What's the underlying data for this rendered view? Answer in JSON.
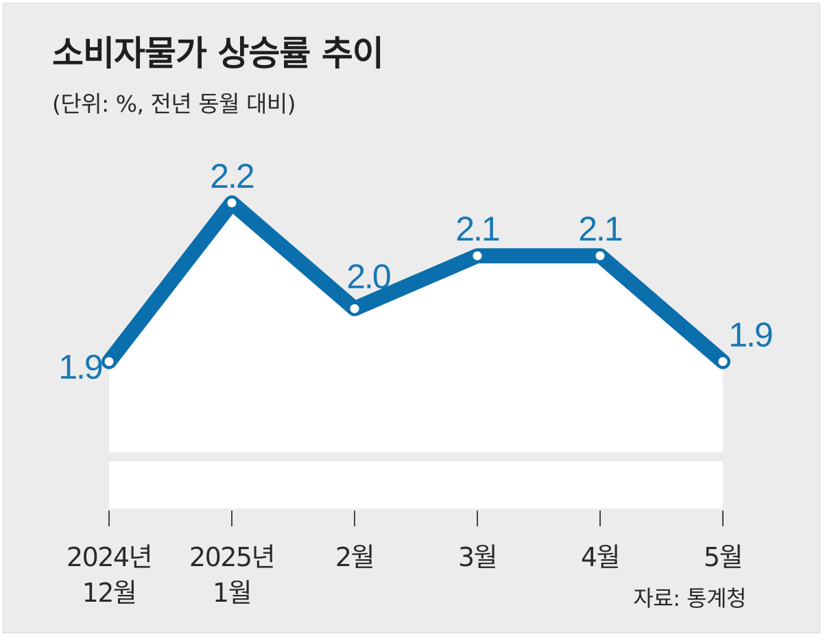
{
  "title": "소비자물가 상승률 추이",
  "subtitle": "(단위: %, 전년 동월 대비)",
  "source": "자료: 통계청",
  "colors": {
    "line": "#0b6fae",
    "label": "#1777b5",
    "area": "#ffffff",
    "background": "#ececec"
  },
  "chart_data": {
    "type": "line",
    "categories": [
      "2024년 12월",
      "2025년 1월",
      "2월",
      "3월",
      "4월",
      "5월"
    ],
    "category_lines": [
      [
        "2024년",
        "12월"
      ],
      [
        "2025년",
        "1월"
      ],
      [
        "2월"
      ],
      [
        "3월"
      ],
      [
        "4월"
      ],
      [
        "5월"
      ]
    ],
    "series": [
      {
        "values": [
          1.9,
          2.2,
          2.0,
          2.1,
          2.1,
          1.9
        ]
      }
    ],
    "data_labels": [
      "1.9",
      "2.2",
      "2.0",
      "2.1",
      "2.1",
      "1.9"
    ],
    "unit": "%",
    "grid": false,
    "legend": "none"
  }
}
